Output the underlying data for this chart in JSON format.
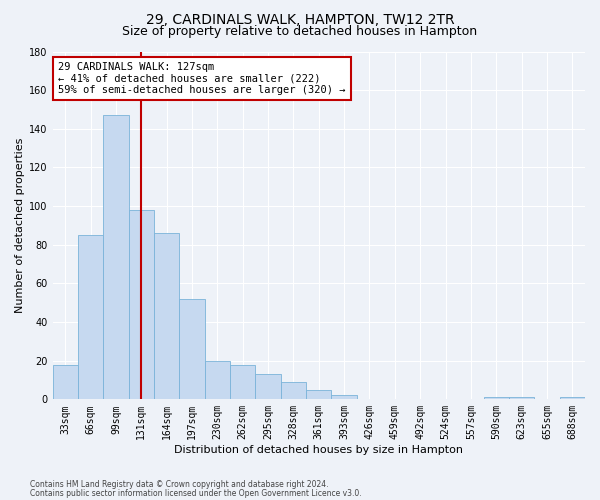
{
  "title": "29, CARDINALS WALK, HAMPTON, TW12 2TR",
  "subtitle": "Size of property relative to detached houses in Hampton",
  "xlabel": "Distribution of detached houses by size in Hampton",
  "ylabel": "Number of detached properties",
  "footnote1": "Contains HM Land Registry data © Crown copyright and database right 2024.",
  "footnote2": "Contains public sector information licensed under the Open Government Licence v3.0.",
  "bar_labels": [
    "33sqm",
    "66sqm",
    "99sqm",
    "131sqm",
    "164sqm",
    "197sqm",
    "230sqm",
    "262sqm",
    "295sqm",
    "328sqm",
    "361sqm",
    "393sqm",
    "426sqm",
    "459sqm",
    "492sqm",
    "524sqm",
    "557sqm",
    "590sqm",
    "623sqm",
    "655sqm",
    "688sqm"
  ],
  "bar_values": [
    18,
    85,
    147,
    98,
    86,
    52,
    20,
    18,
    13,
    9,
    5,
    2,
    0,
    0,
    0,
    0,
    0,
    1,
    1,
    0,
    1
  ],
  "bar_color": "#c6d9f0",
  "bar_edge_color": "#7ab3d9",
  "ylim": [
    0,
    180
  ],
  "yticks": [
    0,
    20,
    40,
    60,
    80,
    100,
    120,
    140,
    160,
    180
  ],
  "vline_bin_index": 3,
  "vline_color": "#c00000",
  "annotation_text": "29 CARDINALS WALK: 127sqm\n← 41% of detached houses are smaller (222)\n59% of semi-detached houses are larger (320) →",
  "annotation_box_color": "#ffffff",
  "annotation_box_edge_color": "#c00000",
  "bg_color": "#eef2f8",
  "grid_color": "#ffffff",
  "title_fontsize": 10,
  "subtitle_fontsize": 9,
  "axis_label_fontsize": 8,
  "tick_fontsize": 7,
  "annotation_fontsize": 7.5,
  "footnote_fontsize": 5.5
}
